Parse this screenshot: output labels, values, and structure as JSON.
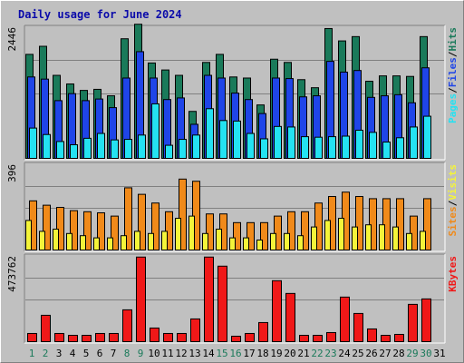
{
  "title": "Daily usage for June 2024",
  "colors": {
    "background": "#c0c0c0",
    "hits": "#1a7a5a",
    "files": "#1f45e8",
    "pages": "#24e2f2",
    "visits": "#f08a1a",
    "sites": "#f4f43a",
    "kbytes": "#f01818",
    "title": "#0a0aaa",
    "weekend_day": "#1a7a5a",
    "weekday_day": "#000000"
  },
  "days": [
    "1",
    "2",
    "3",
    "4",
    "5",
    "6",
    "7",
    "8",
    "9",
    "10",
    "11",
    "12",
    "13",
    "14",
    "15",
    "16",
    "17",
    "18",
    "19",
    "20",
    "21",
    "22",
    "23",
    "24",
    "25",
    "26",
    "27",
    "28",
    "29",
    "30",
    "31"
  ],
  "weekend_days": [
    1,
    2,
    8,
    9,
    15,
    16,
    22,
    23,
    29,
    30
  ],
  "panels": {
    "top": {
      "max_label": "2446",
      "legend": [
        {
          "text": "Pages",
          "color": "#24e2f2"
        },
        {
          "text": "/",
          "color": "#000000"
        },
        {
          "text": "Files",
          "color": "#1f45e8"
        },
        {
          "text": "/",
          "color": "#000000"
        },
        {
          "text": "Hits",
          "color": "#1a7a5a"
        }
      ]
    },
    "middle": {
      "max_label": "396",
      "legend": [
        {
          "text": "Sites",
          "color": "#f08a1a"
        },
        {
          "text": "/",
          "color": "#000000"
        },
        {
          "text": "Visits",
          "color": "#f4f43a"
        }
      ]
    },
    "bottom": {
      "max_label": "473762",
      "legend": [
        {
          "text": "KBytes",
          "color": "#f01818"
        }
      ]
    }
  },
  "chart_data": [
    {
      "type": "bar",
      "panel": "top",
      "categories": [
        "1",
        "2",
        "3",
        "4",
        "5",
        "6",
        "7",
        "8",
        "9",
        "10",
        "11",
        "12",
        "13",
        "14",
        "15",
        "16",
        "17",
        "18",
        "19",
        "20",
        "21",
        "22",
        "23",
        "24",
        "25",
        "26",
        "27",
        "28",
        "29",
        "30",
        "31"
      ],
      "ylim": [
        0,
        2446
      ],
      "series": [
        {
          "name": "Hits",
          "values": [
            1950,
            2100,
            1560,
            1400,
            1280,
            1300,
            1180,
            2240,
            2510,
            1790,
            1660,
            1560,
            890,
            1800,
            1950,
            1530,
            1510,
            1010,
            1860,
            1800,
            1480,
            1330,
            2430,
            2200,
            2280,
            1450,
            1550,
            1550,
            1540,
            2280,
            0
          ]
        },
        {
          "name": "Files",
          "values": [
            1530,
            1490,
            1090,
            1220,
            1090,
            1120,
            960,
            1510,
            2000,
            1510,
            1110,
            1140,
            650,
            1560,
            1510,
            1230,
            1110,
            850,
            1510,
            1500,
            1160,
            1180,
            1820,
            1620,
            1650,
            1150,
            1180,
            1200,
            1050,
            1700,
            0
          ]
        },
        {
          "name": "Pages",
          "values": [
            580,
            460,
            330,
            270,
            390,
            480,
            360,
            370,
            450,
            1030,
            260,
            370,
            450,
            940,
            720,
            710,
            480,
            380,
            610,
            600,
            420,
            410,
            420,
            430,
            540,
            500,
            320,
            400,
            600,
            800,
            0
          ]
        }
      ]
    },
    {
      "type": "bar",
      "panel": "middle",
      "categories": [
        "1",
        "2",
        "3",
        "4",
        "5",
        "6",
        "7",
        "8",
        "9",
        "10",
        "11",
        "12",
        "13",
        "14",
        "15",
        "16",
        "17",
        "18",
        "19",
        "20",
        "21",
        "22",
        "23",
        "24",
        "25",
        "26",
        "27",
        "28",
        "29",
        "30",
        "31"
      ],
      "ylim": [
        0,
        396
      ],
      "series": [
        {
          "name": "Visits",
          "values": [
            140,
            90,
            100,
            80,
            70,
            60,
            60,
            70,
            90,
            80,
            90,
            150,
            160,
            80,
            100,
            60,
            60,
            50,
            80,
            80,
            70,
            110,
            140,
            150,
            110,
            120,
            120,
            110,
            80,
            90,
            0
          ]
        },
        {
          "name": "Sites",
          "values": [
            230,
            210,
            200,
            185,
            180,
            175,
            160,
            290,
            260,
            220,
            180,
            330,
            320,
            170,
            170,
            130,
            130,
            130,
            160,
            180,
            180,
            220,
            250,
            270,
            250,
            240,
            240,
            240,
            160,
            240,
            0
          ]
        }
      ]
    },
    {
      "type": "bar",
      "panel": "bottom",
      "categories": [
        "1",
        "2",
        "3",
        "4",
        "5",
        "6",
        "7",
        "8",
        "9",
        "10",
        "11",
        "12",
        "13",
        "14",
        "15",
        "16",
        "17",
        "18",
        "19",
        "20",
        "21",
        "22",
        "23",
        "24",
        "25",
        "26",
        "27",
        "28",
        "29",
        "30",
        "31"
      ],
      "ylim": [
        0,
        473762
      ],
      "series": [
        {
          "name": "KBytes",
          "values": [
            50000,
            150000,
            50000,
            40000,
            40000,
            50000,
            50000,
            180000,
            470000,
            80000,
            50000,
            50000,
            130000,
            470000,
            420000,
            35000,
            50000,
            110000,
            340000,
            270000,
            40000,
            40000,
            55000,
            250000,
            160000,
            75000,
            40000,
            45000,
            210000,
            240000,
            0
          ]
        }
      ]
    }
  ]
}
